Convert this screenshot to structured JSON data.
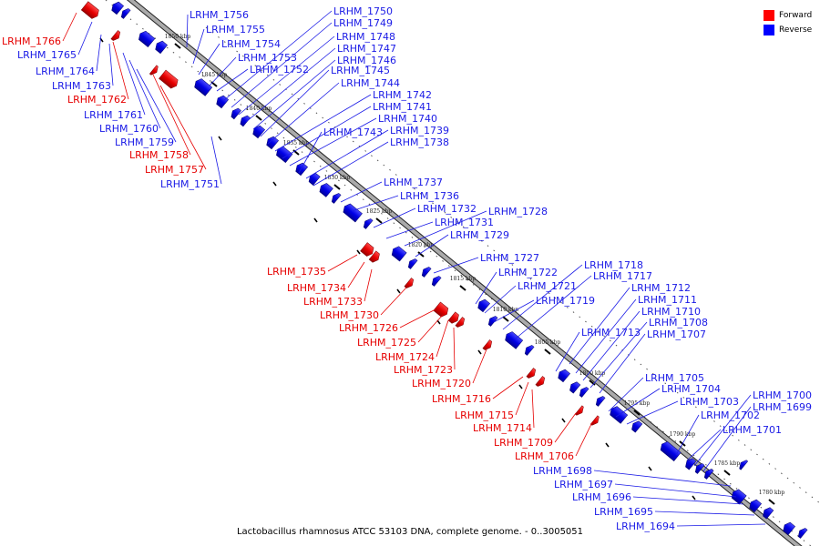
{
  "legend": {
    "forward": {
      "label": "Forward",
      "color": "#ff0000"
    },
    "reverse": {
      "label": "Reverse",
      "color": "#0000ff"
    }
  },
  "caption": "Lactobacillus rhamnosus ATCC 53103 DNA, complete genome. - 0..3005051",
  "ticks": [
    "1850 kbp",
    "1845 kbp",
    "1840 kbp",
    "1835 kbp",
    "1830 kbp",
    "1825 kbp",
    "1820 kbp",
    "1815 kbp",
    "1810 kbp",
    "1805 kbp",
    "1800 kbp",
    "1795 kbp",
    "1790 kbp",
    "1785 kbp",
    "1780 kbp"
  ],
  "genes": [
    {
      "name": "LRHM_1766",
      "strand": "forward"
    },
    {
      "name": "LRHM_1765",
      "strand": "reverse"
    },
    {
      "name": "LRHM_1764",
      "strand": "reverse"
    },
    {
      "name": "LRHM_1763",
      "strand": "reverse"
    },
    {
      "name": "LRHM_1762",
      "strand": "forward"
    },
    {
      "name": "LRHM_1761",
      "strand": "reverse"
    },
    {
      "name": "LRHM_1760",
      "strand": "reverse"
    },
    {
      "name": "LRHM_1759",
      "strand": "reverse"
    },
    {
      "name": "LRHM_1758",
      "strand": "forward"
    },
    {
      "name": "LRHM_1757",
      "strand": "forward"
    },
    {
      "name": "LRHM_1751",
      "strand": "reverse"
    },
    {
      "name": "LRHM_1756",
      "strand": "reverse"
    },
    {
      "name": "LRHM_1755",
      "strand": "reverse"
    },
    {
      "name": "LRHM_1754",
      "strand": "reverse"
    },
    {
      "name": "LRHM_1753",
      "strand": "reverse"
    },
    {
      "name": "LRHM_1752",
      "strand": "reverse"
    },
    {
      "name": "LRHM_1750",
      "strand": "reverse"
    },
    {
      "name": "LRHM_1749",
      "strand": "reverse"
    },
    {
      "name": "LRHM_1748",
      "strand": "reverse"
    },
    {
      "name": "LRHM_1747",
      "strand": "reverse"
    },
    {
      "name": "LRHM_1746",
      "strand": "reverse"
    },
    {
      "name": "LRHM_1745",
      "strand": "reverse"
    },
    {
      "name": "LRHM_1744",
      "strand": "reverse"
    },
    {
      "name": "LRHM_1742",
      "strand": "reverse"
    },
    {
      "name": "LRHM_1741",
      "strand": "reverse"
    },
    {
      "name": "LRHM_1740",
      "strand": "reverse"
    },
    {
      "name": "LRHM_1743",
      "strand": "reverse"
    },
    {
      "name": "LRHM_1739",
      "strand": "reverse"
    },
    {
      "name": "LRHM_1738",
      "strand": "reverse"
    },
    {
      "name": "LRHM_1737",
      "strand": "reverse"
    },
    {
      "name": "LRHM_1736",
      "strand": "reverse"
    },
    {
      "name": "LRHM_1732",
      "strand": "reverse"
    },
    {
      "name": "LRHM_1731",
      "strand": "reverse"
    },
    {
      "name": "LRHM_1728",
      "strand": "reverse"
    },
    {
      "name": "LRHM_1729",
      "strand": "reverse"
    },
    {
      "name": "LRHM_1727",
      "strand": "reverse"
    },
    {
      "name": "LRHM_1722",
      "strand": "reverse"
    },
    {
      "name": "LRHM_1721",
      "strand": "reverse"
    },
    {
      "name": "LRHM_1719",
      "strand": "reverse"
    },
    {
      "name": "LRHM_1718",
      "strand": "reverse"
    },
    {
      "name": "LRHM_1717",
      "strand": "reverse"
    },
    {
      "name": "LRHM_1713",
      "strand": "reverse"
    },
    {
      "name": "LRHM_1712",
      "strand": "reverse"
    },
    {
      "name": "LRHM_1711",
      "strand": "reverse"
    },
    {
      "name": "LRHM_1710",
      "strand": "reverse"
    },
    {
      "name": "LRHM_1708",
      "strand": "reverse"
    },
    {
      "name": "LRHM_1707",
      "strand": "reverse"
    },
    {
      "name": "LRHM_1735",
      "strand": "forward"
    },
    {
      "name": "LRHM_1734",
      "strand": "forward"
    },
    {
      "name": "LRHM_1733",
      "strand": "forward"
    },
    {
      "name": "LRHM_1730",
      "strand": "forward"
    },
    {
      "name": "LRHM_1726",
      "strand": "forward"
    },
    {
      "name": "LRHM_1725",
      "strand": "forward"
    },
    {
      "name": "LRHM_1724",
      "strand": "forward"
    },
    {
      "name": "LRHM_1723",
      "strand": "forward"
    },
    {
      "name": "LRHM_1720",
      "strand": "forward"
    },
    {
      "name": "LRHM_1716",
      "strand": "forward"
    },
    {
      "name": "LRHM_1715",
      "strand": "forward"
    },
    {
      "name": "LRHM_1714",
      "strand": "forward"
    },
    {
      "name": "LRHM_1709",
      "strand": "forward"
    },
    {
      "name": "LRHM_1706",
      "strand": "forward"
    },
    {
      "name": "LRHM_1705",
      "strand": "reverse"
    },
    {
      "name": "LRHM_1704",
      "strand": "reverse"
    },
    {
      "name": "LRHM_1703",
      "strand": "reverse"
    },
    {
      "name": "LRHM_1702",
      "strand": "reverse"
    },
    {
      "name": "LRHM_1701",
      "strand": "reverse"
    },
    {
      "name": "LRHM_1700",
      "strand": "reverse"
    },
    {
      "name": "LRHM_1699",
      "strand": "reverse"
    },
    {
      "name": "LRHM_1698",
      "strand": "reverse"
    },
    {
      "name": "LRHM_1697",
      "strand": "reverse"
    },
    {
      "name": "LRHM_1696",
      "strand": "reverse"
    },
    {
      "name": "LRHM_1695",
      "strand": "reverse"
    },
    {
      "name": "LRHM_1694",
      "strand": "reverse"
    }
  ]
}
